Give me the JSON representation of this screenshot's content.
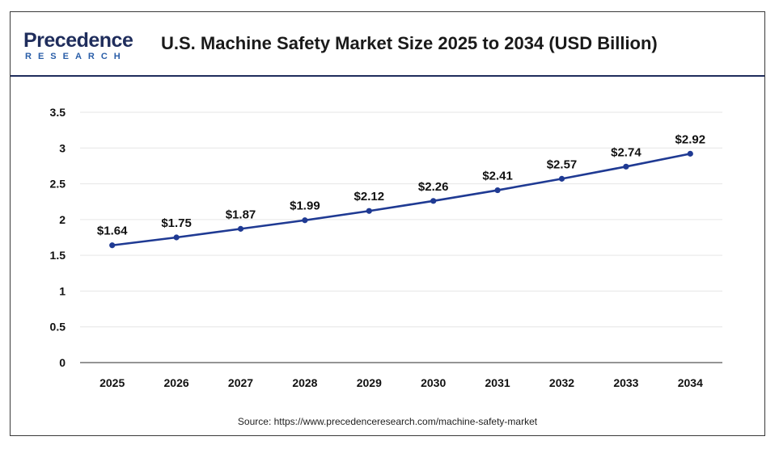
{
  "header": {
    "logo_top": "Precedence",
    "logo_bottom": "RESEARCH",
    "title": "U.S. Machine Safety Market Size 2025 to 2034 (USD Billion)"
  },
  "source": "Source: https://www.precedenceresearch.com/machine-safety-market",
  "colors": {
    "line": "#1f3a93",
    "grid": "#e6e6e6",
    "axis": "#555555"
  },
  "chart_data": {
    "type": "line",
    "title": "U.S. Machine Safety Market Size 2025 to 2034 (USD Billion)",
    "xlabel": "",
    "ylabel": "",
    "categories": [
      "2025",
      "2026",
      "2027",
      "2028",
      "2029",
      "2030",
      "2031",
      "2032",
      "2033",
      "2034"
    ],
    "values": [
      1.64,
      1.75,
      1.87,
      1.99,
      2.12,
      2.26,
      2.41,
      2.57,
      2.74,
      2.92
    ],
    "data_labels": [
      "$1.64",
      "$1.75",
      "$1.87",
      "$1.99",
      "$2.12",
      "$2.26",
      "$2.41",
      "$2.57",
      "$2.74",
      "$2.92"
    ],
    "yticks": [
      0,
      0.5,
      1,
      1.5,
      2,
      2.5,
      3,
      3.5
    ],
    "ytick_labels": [
      "0",
      "0.5",
      "1",
      "1.5",
      "2",
      "2.5",
      "3",
      "3.5"
    ],
    "ylim": [
      0,
      3.5
    ],
    "grid": true,
    "legend": "none"
  }
}
